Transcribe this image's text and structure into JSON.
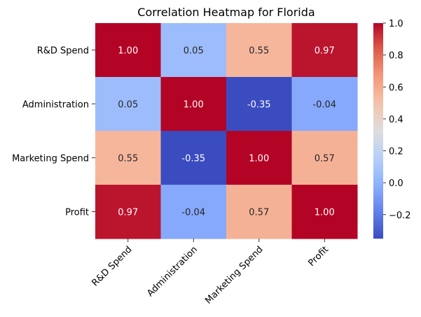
{
  "chart_data": {
    "type": "heatmap",
    "title": "Correlation Heatmap for Florida",
    "rows": [
      "R&D Spend",
      "Administration",
      "Marketing Spend",
      "Profit"
    ],
    "columns": [
      "R&D Spend",
      "Administration",
      "Marketing Spend",
      "Profit"
    ],
    "values": [
      [
        1.0,
        0.05,
        0.55,
        0.97
      ],
      [
        0.05,
        1.0,
        -0.35,
        -0.04
      ],
      [
        0.55,
        -0.35,
        1.0,
        0.57
      ],
      [
        0.97,
        -0.04,
        0.57,
        1.0
      ]
    ],
    "value_format": "2 decimals",
    "colormap": "coolwarm",
    "vmin": -0.35,
    "vmax": 1.0,
    "colorbar_ticks": [
      "1.0",
      "0.8",
      "0.6",
      "0.4",
      "0.2",
      "0.0",
      "−0.2"
    ],
    "colorbar_tick_values": [
      1.0,
      0.8,
      0.6,
      0.4,
      0.2,
      0.0,
      -0.2
    ],
    "xlabel": "",
    "ylabel": "",
    "xtick_rotation_deg": 45
  }
}
